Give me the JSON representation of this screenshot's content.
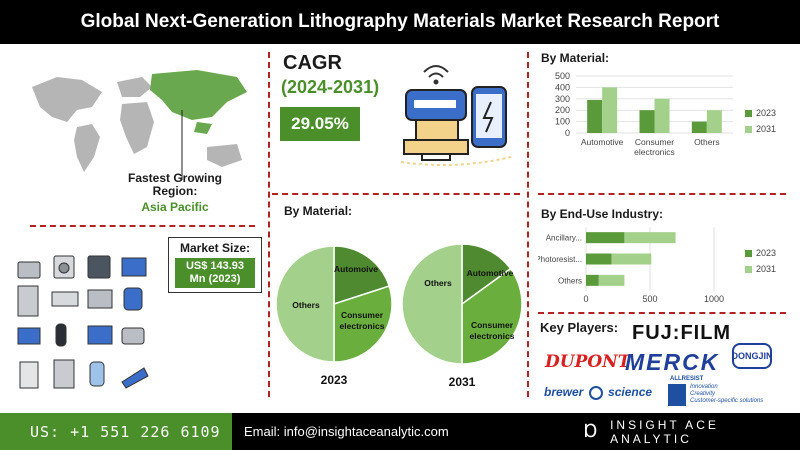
{
  "title": "Global Next-Generation Lithography Materials Market Research Report",
  "region": {
    "label_line1": "Fastest Growing",
    "label_line2": "Region:",
    "value": "Asia Pacific"
  },
  "cagr": {
    "title": "CAGR",
    "years": "(2024-2031)",
    "value": "29.05%"
  },
  "market_size": {
    "label": "Market Size:",
    "value_line1": "US$ 143.93",
    "value_line2": "Mn (2023)"
  },
  "sections": {
    "by_material_top": "By Material:",
    "by_material_pies": "By Material:",
    "by_end_use": "By End-Use Industry:",
    "key_players": "Key Players:"
  },
  "key_players": {
    "fujifilm": "FUJ:FILM",
    "dupont": "DUPONT",
    "merck": "MERCK",
    "dongjin": "DONGJIN",
    "brewer": "brewer",
    "brewer_science": "science",
    "allresist_brand": "ALLRESIST",
    "allresist_tag1": "Innovation",
    "allresist_tag2": "Creativity",
    "allresist_tag3": "Customer-specific solutions"
  },
  "colors": {
    "dark_green": "#5a9a3a",
    "light_green": "#a3d18b",
    "brand_green": "#4a8f2a",
    "divider": "#b22222"
  },
  "icons": [
    "world-map",
    "router-phone-printer-illustration",
    "appliance-icons",
    "ace-icon"
  ],
  "footer": {
    "phone": "US: +1 551 226 6109",
    "email": "Email: info@insightaceanalytic.com",
    "brand": "INSIGHT ACE ANALYTIC"
  },
  "chart_data": [
    {
      "type": "bar",
      "title": "By Material:",
      "categories": [
        "Automotive",
        "Consumer electronics",
        "Others"
      ],
      "series": [
        {
          "name": "2023",
          "values": [
            290,
            200,
            100
          ]
        },
        {
          "name": "2031",
          "values": [
            400,
            300,
            200
          ]
        }
      ],
      "ylim": [
        0,
        500
      ],
      "yticks": [
        "0",
        "100",
        "200",
        "300",
        "400",
        "500"
      ],
      "legend": "right"
    },
    {
      "type": "bar",
      "orientation": "horizontal",
      "stacked": true,
      "title": "By End-Use Industry:",
      "categories": [
        "Ancillary...",
        "Photoresist...",
        "Others"
      ],
      "series": [
        {
          "name": "2023",
          "values": [
            300,
            200,
            100
          ]
        },
        {
          "name": "2031",
          "values": [
            400,
            310,
            200
          ]
        }
      ],
      "xlim": [
        0,
        1000
      ],
      "xticks": [
        "0",
        "500",
        "1000"
      ],
      "legend": "right"
    },
    {
      "type": "pie",
      "title": "2023",
      "labels": [
        "Automoive",
        "Consumer electronics",
        "Others"
      ],
      "values": [
        20,
        30,
        50
      ]
    },
    {
      "type": "pie",
      "title": "2031",
      "labels": [
        "Automotive",
        "Consumer electronics",
        "Others"
      ],
      "values": [
        15,
        35,
        50
      ]
    }
  ]
}
